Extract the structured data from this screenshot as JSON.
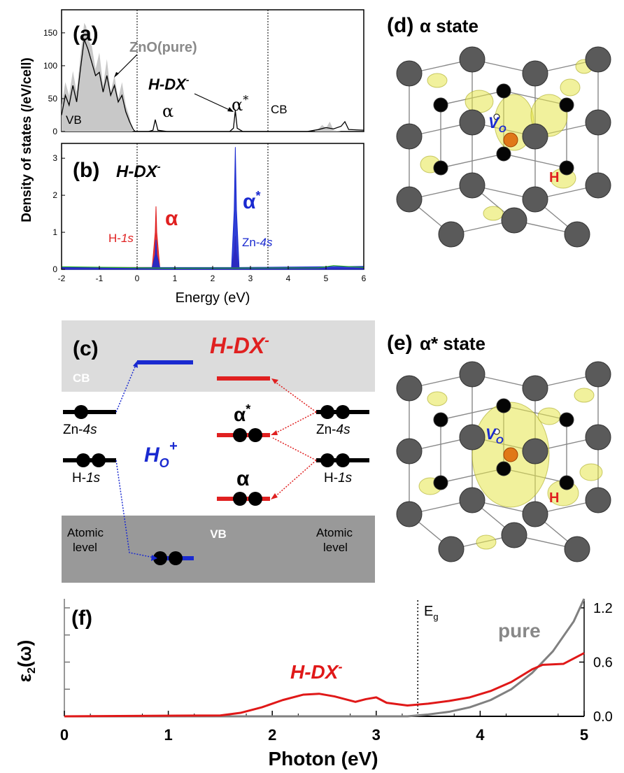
{
  "dos": {
    "ylabel": "Density of states (/eV/cell)",
    "xlabel": "Energy (eV)",
    "x_ticks": [
      "-2",
      "-1",
      "0",
      "1",
      "2",
      "3",
      "4",
      "5",
      "6"
    ],
    "a": {
      "label": "(a)",
      "y_ticks": [
        "0",
        "50",
        "100",
        "150"
      ],
      "legend_pure": "ZnO(pure)",
      "legend_hdx": "H-DX",
      "legend_hdx_sup": "-",
      "vb": "VB",
      "cb": "CB",
      "alpha": "α",
      "alpha_star": "α",
      "star": "*"
    },
    "b": {
      "label": "(b)",
      "title": "H-DX",
      "title_sup": "-",
      "y_ticks": [
        "0",
        "1",
        "2",
        "3"
      ],
      "alpha": "α",
      "alpha_star": "α",
      "star": "*",
      "h1s_pre": "H-",
      "h1s_it": "1s",
      "zn4s_pre": "Zn-",
      "zn4s_it": "4s"
    }
  },
  "chart_data": [
    {
      "type": "area",
      "panel": "a",
      "xlim": [
        -2,
        6
      ],
      "ylim": [
        0,
        185
      ],
      "series": [
        {
          "name": "ZnO(pure)",
          "color": "#c8c8c8",
          "x": [
            -2.0,
            -1.9,
            -1.8,
            -1.7,
            -1.6,
            -1.5,
            -1.4,
            -1.35,
            -1.3,
            -1.2,
            -1.1,
            -1.0,
            -0.9,
            -0.8,
            -0.7,
            -0.6,
            -0.5,
            -0.4,
            -0.3,
            -0.2,
            -0.12,
            -0.12,
            4.7,
            4.8,
            4.9,
            5.0,
            5.1,
            5.2,
            5.4,
            6.0
          ],
          "values": [
            40,
            75,
            55,
            92,
            60,
            115,
            165,
            160,
            140,
            130,
            95,
            120,
            70,
            110,
            60,
            85,
            50,
            75,
            40,
            22,
            2,
            0,
            0,
            4,
            10,
            5,
            15,
            2,
            0,
            0
          ]
        },
        {
          "name": "H-DX-",
          "color": "#000000",
          "x": [
            -2.0,
            -1.9,
            -1.8,
            -1.7,
            -1.6,
            -1.5,
            -1.4,
            -1.3,
            -1.2,
            -1.1,
            -1.0,
            -0.9,
            -0.8,
            -0.7,
            -0.6,
            -0.5,
            -0.4,
            -0.3,
            -0.2,
            -0.1,
            -0.05,
            0.3,
            0.42,
            0.48,
            0.55,
            0.8,
            2.45,
            2.55,
            2.6,
            2.65,
            2.8,
            4.5,
            4.8,
            5.0,
            5.2,
            5.4,
            5.5,
            5.6,
            6.0
          ],
          "values": [
            25,
            55,
            40,
            70,
            45,
            95,
            140,
            125,
            105,
            85,
            90,
            60,
            85,
            55,
            70,
            45,
            55,
            30,
            15,
            3,
            0,
            0,
            2,
            18,
            2,
            0,
            0,
            5,
            32,
            5,
            0,
            0,
            3,
            6,
            4,
            8,
            15,
            3,
            2
          ]
        }
      ]
    },
    {
      "type": "line",
      "panel": "b",
      "xlim": [
        -2,
        6
      ],
      "ylim": [
        0,
        3.4
      ],
      "peaks": [
        {
          "label": "α",
          "x": 0.5,
          "y": 1.7,
          "color": "#e02020"
        },
        {
          "label": "α*",
          "x": 2.6,
          "y": 3.3,
          "color": "#1a2ad0"
        }
      ],
      "series": [
        {
          "name": "H-1s",
          "color": "#e02020",
          "x": [
            -2,
            0.4,
            0.48,
            0.5,
            0.52,
            0.6,
            2.5,
            2.58,
            2.6,
            2.62,
            2.7,
            6
          ],
          "values": [
            0.05,
            0.05,
            1.0,
            1.7,
            1.0,
            0.05,
            0.02,
            0.5,
            0.9,
            0.5,
            0.02,
            0.03
          ]
        },
        {
          "name": "Zn-4s",
          "color": "#1a2ad0",
          "x": [
            -2,
            0.4,
            0.48,
            0.5,
            0.52,
            0.6,
            2.5,
            2.57,
            2.6,
            2.63,
            2.7,
            6
          ],
          "values": [
            0.05,
            0.05,
            0.4,
            0.8,
            0.4,
            0.05,
            0.05,
            1.6,
            3.3,
            1.6,
            0.05,
            0.08
          ]
        }
      ]
    },
    {
      "type": "line",
      "panel": "f",
      "xlabel": "Photon (eV)",
      "ylabel": "ε2(ω)",
      "xlim": [
        0,
        5
      ],
      "ylim": [
        0,
        1.3
      ],
      "x_ticks": [
        0,
        1,
        2,
        3,
        4,
        5
      ],
      "y_ticks": [
        0.0,
        0.6,
        1.2
      ],
      "eg_line": 3.4,
      "series": [
        {
          "name": "pure",
          "color": "#808080",
          "x": [
            0,
            3.3,
            3.5,
            3.7,
            3.9,
            4.1,
            4.3,
            4.5,
            4.7,
            4.9,
            5.0
          ],
          "values": [
            0,
            0,
            0.02,
            0.05,
            0.1,
            0.18,
            0.3,
            0.48,
            0.72,
            1.05,
            1.3
          ]
        },
        {
          "name": "H-DX-",
          "color": "#e01818",
          "x": [
            0,
            1.5,
            1.7,
            1.9,
            2.1,
            2.3,
            2.45,
            2.6,
            2.8,
            2.9,
            3.0,
            3.1,
            3.3,
            3.5,
            3.7,
            3.9,
            4.1,
            4.3,
            4.5,
            4.6,
            4.8,
            5.0
          ],
          "values": [
            0,
            0.01,
            0.04,
            0.1,
            0.18,
            0.24,
            0.25,
            0.22,
            0.16,
            0.19,
            0.21,
            0.15,
            0.12,
            0.14,
            0.17,
            0.21,
            0.28,
            0.38,
            0.52,
            0.57,
            0.58,
            0.7
          ]
        }
      ]
    }
  ],
  "c": {
    "label": "(c)",
    "cb": "CB",
    "vb": "VB",
    "hdx_title": "H-DX",
    "hdx_sup": "-",
    "ho": "H",
    "ho_sub": "O",
    "ho_sup": "+",
    "zn4s_pre": "Zn-",
    "zn4s_it": "4s",
    "h1s_pre": "H-",
    "h1s_it": "1s",
    "alpha": "α",
    "alpha_star": "α",
    "star": "*",
    "atomic1": "Atomic",
    "atomic2": "level"
  },
  "d": {
    "label": "(d)",
    "title": "α state",
    "vo": "V",
    "vo_sub": "O",
    "h": "H"
  },
  "e": {
    "label": "(e)",
    "title": "α* state",
    "vo": "V",
    "vo_sub": "O",
    "h": "H"
  },
  "f": {
    "label": "(f)",
    "eg": "E",
    "eg_sub": "g",
    "pure": "pure",
    "hdx": "H-DX",
    "hdx_sup": "-",
    "ylabel_main": "ε",
    "ylabel_sub": "2",
    "ylabel_tail": "(ω)"
  }
}
